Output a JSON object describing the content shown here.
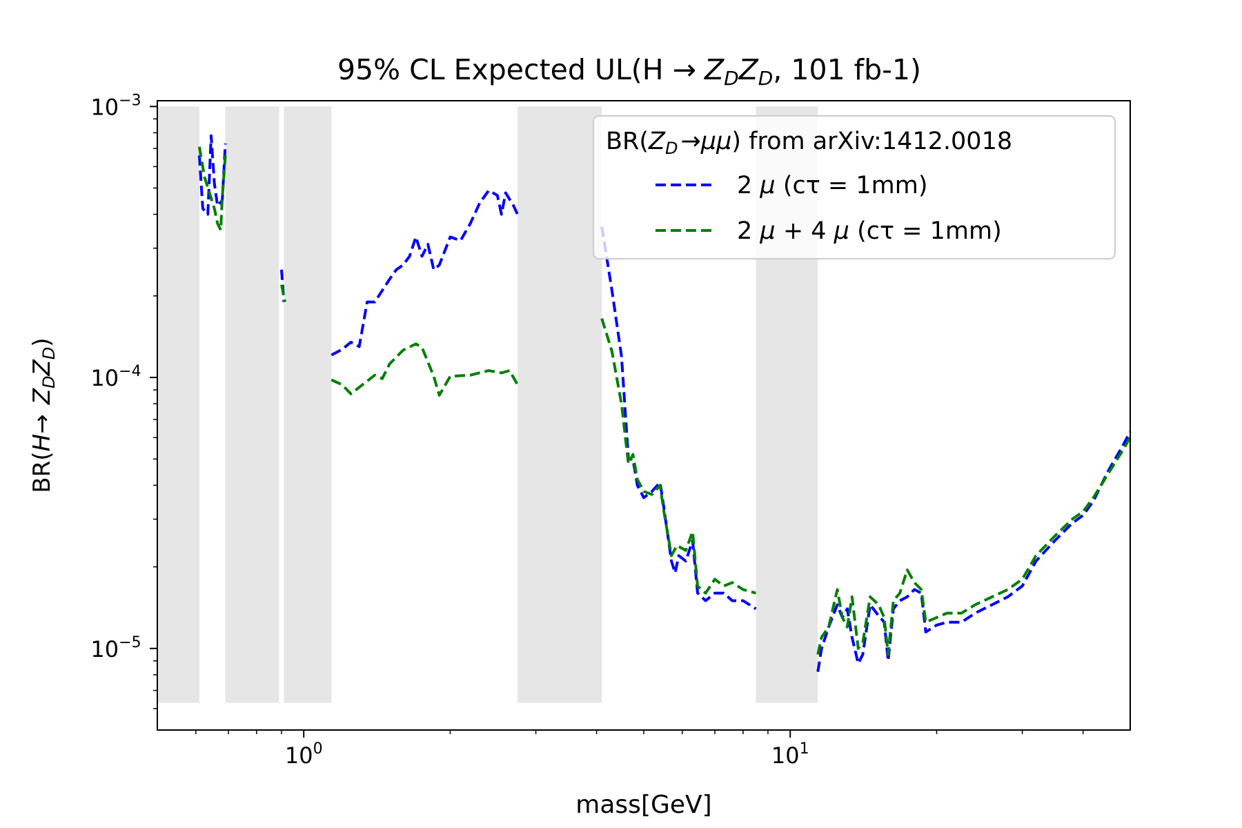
{
  "chart_data": {
    "type": "line",
    "title": "95% CL Expected UL(H → Z_D Z_D, 101 fb-1)",
    "title_parts": {
      "pre": "95% CL Expected UL(H ",
      "arrow": "→",
      "z1": "Z",
      "z2": "Z",
      "sub": "D",
      "post": ", 101 fb-1)"
    },
    "xlabel": "mass[GeV]",
    "ylabel": "BR(H → Z_D Z_D)",
    "ylabel_parts": {
      "pre": "BR(",
      "h": "H",
      "arrow": "→",
      "z1": "Z",
      "z2": "Z",
      "sub": "D",
      "post": ")"
    },
    "x_scale": "log",
    "y_scale": "log",
    "xlim": [
      0.5,
      50
    ],
    "ylim": [
      5e-06,
      0.00105
    ],
    "grid": false,
    "x_ticks": [
      {
        "value": 1,
        "base": "10",
        "exp": "0"
      },
      {
        "value": 10,
        "base": "10",
        "exp": "1"
      }
    ],
    "y_ticks": [
      {
        "value": 1e-05,
        "base": "10",
        "exp": "−5"
      },
      {
        "value": 0.0001,
        "base": "10",
        "exp": "−4"
      },
      {
        "value": 0.001,
        "base": "10",
        "exp": "−3"
      }
    ],
    "excluded_bands": [
      {
        "x0": 0.5,
        "x1": 0.61
      },
      {
        "x0": 0.69,
        "x1": 0.89
      },
      {
        "x0": 0.91,
        "x1": 1.14
      },
      {
        "x0": 2.75,
        "x1": 4.1
      },
      {
        "x0": 8.5,
        "x1": 11.4
      }
    ],
    "band_y_range": [
      6.3e-06,
      0.001
    ],
    "legend": {
      "placement": "upper-right",
      "title_parts": {
        "pre": "BR(",
        "z": "Z",
        "sub": "D",
        "arrow": "→",
        "mu": "μμ",
        "post": ") from arXiv:1412.0018"
      },
      "entries": [
        {
          "pre": "2 ",
          "mu1": "μ",
          "mid": "",
          "mu2": "",
          "post": " (cτ = 1mm)",
          "color": "#0000ff"
        },
        {
          "pre": "2 ",
          "mu1": "μ",
          "mid": " + 4 ",
          "mu2": "μ",
          "post": " (cτ = 1mm)",
          "color": "#008000"
        }
      ]
    },
    "series": [
      {
        "name": "2 μ (cτ = 1mm)",
        "color": "#0000ff",
        "segments": [
          [
            [
              0.61,
              0.00066
            ],
            [
              0.62,
              0.00042
            ],
            [
              0.635,
              0.0004
            ],
            [
              0.645,
              0.00078
            ],
            [
              0.655,
              0.00052
            ],
            [
              0.665,
              0.00043
            ],
            [
              0.68,
              0.00045
            ],
            [
              0.69,
              0.00073
            ]
          ],
          [
            [
              0.9,
              0.00025
            ],
            [
              0.91,
              0.00019
            ]
          ],
          [
            [
              1.14,
              0.000121
            ],
            [
              1.2,
              0.000127
            ],
            [
              1.25,
              0.000135
            ],
            [
              1.3,
              0.00013
            ],
            [
              1.35,
              0.00019
            ],
            [
              1.4,
              0.00019
            ],
            [
              1.5,
              0.00023
            ],
            [
              1.55,
              0.00025
            ],
            [
              1.6,
              0.00026
            ],
            [
              1.65,
              0.00028
            ],
            [
              1.7,
              0.00033
            ],
            [
              1.75,
              0.00028
            ],
            [
              1.8,
              0.00031
            ],
            [
              1.85,
              0.00025
            ],
            [
              1.9,
              0.00026
            ],
            [
              2.0,
              0.00033
            ],
            [
              2.1,
              0.00032
            ],
            [
              2.2,
              0.00037
            ],
            [
              2.3,
              0.00044
            ],
            [
              2.4,
              0.00049
            ],
            [
              2.5,
              0.00047
            ],
            [
              2.55,
              0.0004
            ],
            [
              2.6,
              0.00048
            ],
            [
              2.7,
              0.00043
            ],
            [
              2.75,
              0.0004
            ]
          ],
          [
            [
              4.1,
              0.00036
            ],
            [
              4.3,
              0.00021
            ],
            [
              4.5,
              0.00012
            ],
            [
              4.65,
              5e-05
            ],
            [
              4.75,
              5e-05
            ],
            [
              4.85,
              4e-05
            ],
            [
              5.0,
              3.6e-05
            ],
            [
              5.2,
              3.8e-05
            ],
            [
              5.4,
              4.1e-05
            ],
            [
              5.5,
              3.3e-05
            ],
            [
              5.7,
              2.1e-05
            ],
            [
              5.8,
              1.9e-05
            ],
            [
              5.9,
              2.2e-05
            ],
            [
              6.1,
              2.1e-05
            ],
            [
              6.3,
              2.5e-05
            ],
            [
              6.45,
              1.6e-05
            ],
            [
              6.7,
              1.5e-05
            ],
            [
              7.0,
              1.6e-05
            ],
            [
              7.3,
              1.6e-05
            ],
            [
              7.6,
              1.5e-05
            ],
            [
              8.0,
              1.5e-05
            ],
            [
              8.5,
              1.4e-05
            ]
          ],
          [
            [
              11.4,
              8.2e-06
            ],
            [
              11.6,
              1e-05
            ],
            [
              12.0,
              1.2e-05
            ],
            [
              12.5,
              1.45e-05
            ],
            [
              12.8,
              1.3e-05
            ],
            [
              13.1,
              1.4e-05
            ],
            [
              13.4,
              1.1e-05
            ],
            [
              13.8,
              8.8e-06
            ],
            [
              14.1,
              9.5e-06
            ],
            [
              14.6,
              1.45e-05
            ],
            [
              15.2,
              1.32e-05
            ],
            [
              15.6,
              1.25e-05
            ],
            [
              15.9,
              9e-06
            ],
            [
              16.3,
              1.4e-05
            ],
            [
              16.8,
              1.5e-05
            ],
            [
              17.4,
              1.55e-05
            ],
            [
              18.0,
              1.65e-05
            ],
            [
              18.6,
              1.6e-05
            ],
            [
              19.0,
              1.15e-05
            ],
            [
              20.0,
              1.22e-05
            ],
            [
              21.0,
              1.25e-05
            ],
            [
              22.5,
              1.25e-05
            ],
            [
              24.0,
              1.35e-05
            ],
            [
              26.0,
              1.45e-05
            ],
            [
              28.0,
              1.55e-05
            ],
            [
              30.0,
              1.7e-05
            ],
            [
              32.0,
              2.1e-05
            ],
            [
              35.0,
              2.5e-05
            ],
            [
              38.0,
              2.9e-05
            ],
            [
              40.0,
              3.1e-05
            ],
            [
              42.0,
              3.5e-05
            ],
            [
              45.0,
              4.5e-05
            ],
            [
              48.0,
              5.5e-05
            ],
            [
              50.0,
              6.3e-05
            ]
          ]
        ]
      },
      {
        "name": "2 μ + 4 μ (cτ = 1mm)",
        "color": "#008000",
        "segments": [
          [
            [
              0.61,
              0.00071
            ],
            [
              0.625,
              0.00055
            ],
            [
              0.64,
              0.00048
            ],
            [
              0.655,
              0.00042
            ],
            [
              0.665,
              0.00037
            ],
            [
              0.675,
              0.00035
            ],
            [
              0.68,
              0.00046
            ],
            [
              0.69,
              0.00066
            ]
          ],
          [
            [
              0.9,
              0.00022
            ],
            [
              0.915,
              0.00019
            ]
          ],
          [
            [
              1.14,
              9.8e-05
            ],
            [
              1.2,
              9.4e-05
            ],
            [
              1.25,
              8.7e-05
            ],
            [
              1.3,
              9.2e-05
            ],
            [
              1.4,
              0.000102
            ],
            [
              1.45,
              9.9e-05
            ],
            [
              1.5,
              0.000112
            ],
            [
              1.6,
              0.000126
            ],
            [
              1.7,
              0.000133
            ],
            [
              1.75,
              0.000129
            ],
            [
              1.8,
              0.000114
            ],
            [
              1.85,
              0.000101
            ],
            [
              1.9,
              8.6e-05
            ],
            [
              2.0,
              0.000101
            ],
            [
              2.2,
              0.000102
            ],
            [
              2.4,
              0.000106
            ],
            [
              2.55,
              0.000104
            ],
            [
              2.65,
              0.000106
            ],
            [
              2.75,
              9.4e-05
            ]
          ],
          [
            [
              4.1,
              0.000165
            ],
            [
              4.3,
              0.000125
            ],
            [
              4.5,
              8e-05
            ],
            [
              4.65,
              4.8e-05
            ],
            [
              4.75,
              5.2e-05
            ],
            [
              4.85,
              4.2e-05
            ],
            [
              5.0,
              3.8e-05
            ],
            [
              5.2,
              3.7e-05
            ],
            [
              5.4,
              4e-05
            ],
            [
              5.5,
              3.2e-05
            ],
            [
              5.7,
              2.2e-05
            ],
            [
              5.85,
              2.4e-05
            ],
            [
              6.1,
              2.3e-05
            ],
            [
              6.3,
              2.7e-05
            ],
            [
              6.45,
              1.7e-05
            ],
            [
              6.7,
              1.6e-05
            ],
            [
              7.0,
              1.8e-05
            ],
            [
              7.3,
              1.7e-05
            ],
            [
              7.6,
              1.75e-05
            ],
            [
              8.0,
              1.65e-05
            ],
            [
              8.5,
              1.6e-05
            ]
          ],
          [
            [
              11.4,
              9.5e-06
            ],
            [
              11.6,
              1.1e-05
            ],
            [
              12.0,
              1.2e-05
            ],
            [
              12.5,
              1.65e-05
            ],
            [
              12.8,
              1.3e-05
            ],
            [
              13.1,
              1.2e-05
            ],
            [
              13.4,
              1.55e-05
            ],
            [
              13.8,
              1e-05
            ],
            [
              14.1,
              1.05e-05
            ],
            [
              14.6,
              1.55e-05
            ],
            [
              15.2,
              1.45e-05
            ],
            [
              15.6,
              1.3e-05
            ],
            [
              15.9,
              9.5e-06
            ],
            [
              16.3,
              1.5e-05
            ],
            [
              16.8,
              1.6e-05
            ],
            [
              17.4,
              1.95e-05
            ],
            [
              18.0,
              1.75e-05
            ],
            [
              18.6,
              1.65e-05
            ],
            [
              19.0,
              1.25e-05
            ],
            [
              20.0,
              1.3e-05
            ],
            [
              21.0,
              1.35e-05
            ],
            [
              22.5,
              1.35e-05
            ],
            [
              24.0,
              1.45e-05
            ],
            [
              26.0,
              1.55e-05
            ],
            [
              28.0,
              1.65e-05
            ],
            [
              30.0,
              1.8e-05
            ],
            [
              32.0,
              2.2e-05
            ],
            [
              35.0,
              2.6e-05
            ],
            [
              38.0,
              3e-05
            ],
            [
              40.0,
              3.2e-05
            ],
            [
              42.0,
              3.6e-05
            ],
            [
              45.0,
              4.4e-05
            ],
            [
              48.0,
              5.3e-05
            ],
            [
              50.0,
              6e-05
            ]
          ]
        ]
      }
    ]
  }
}
